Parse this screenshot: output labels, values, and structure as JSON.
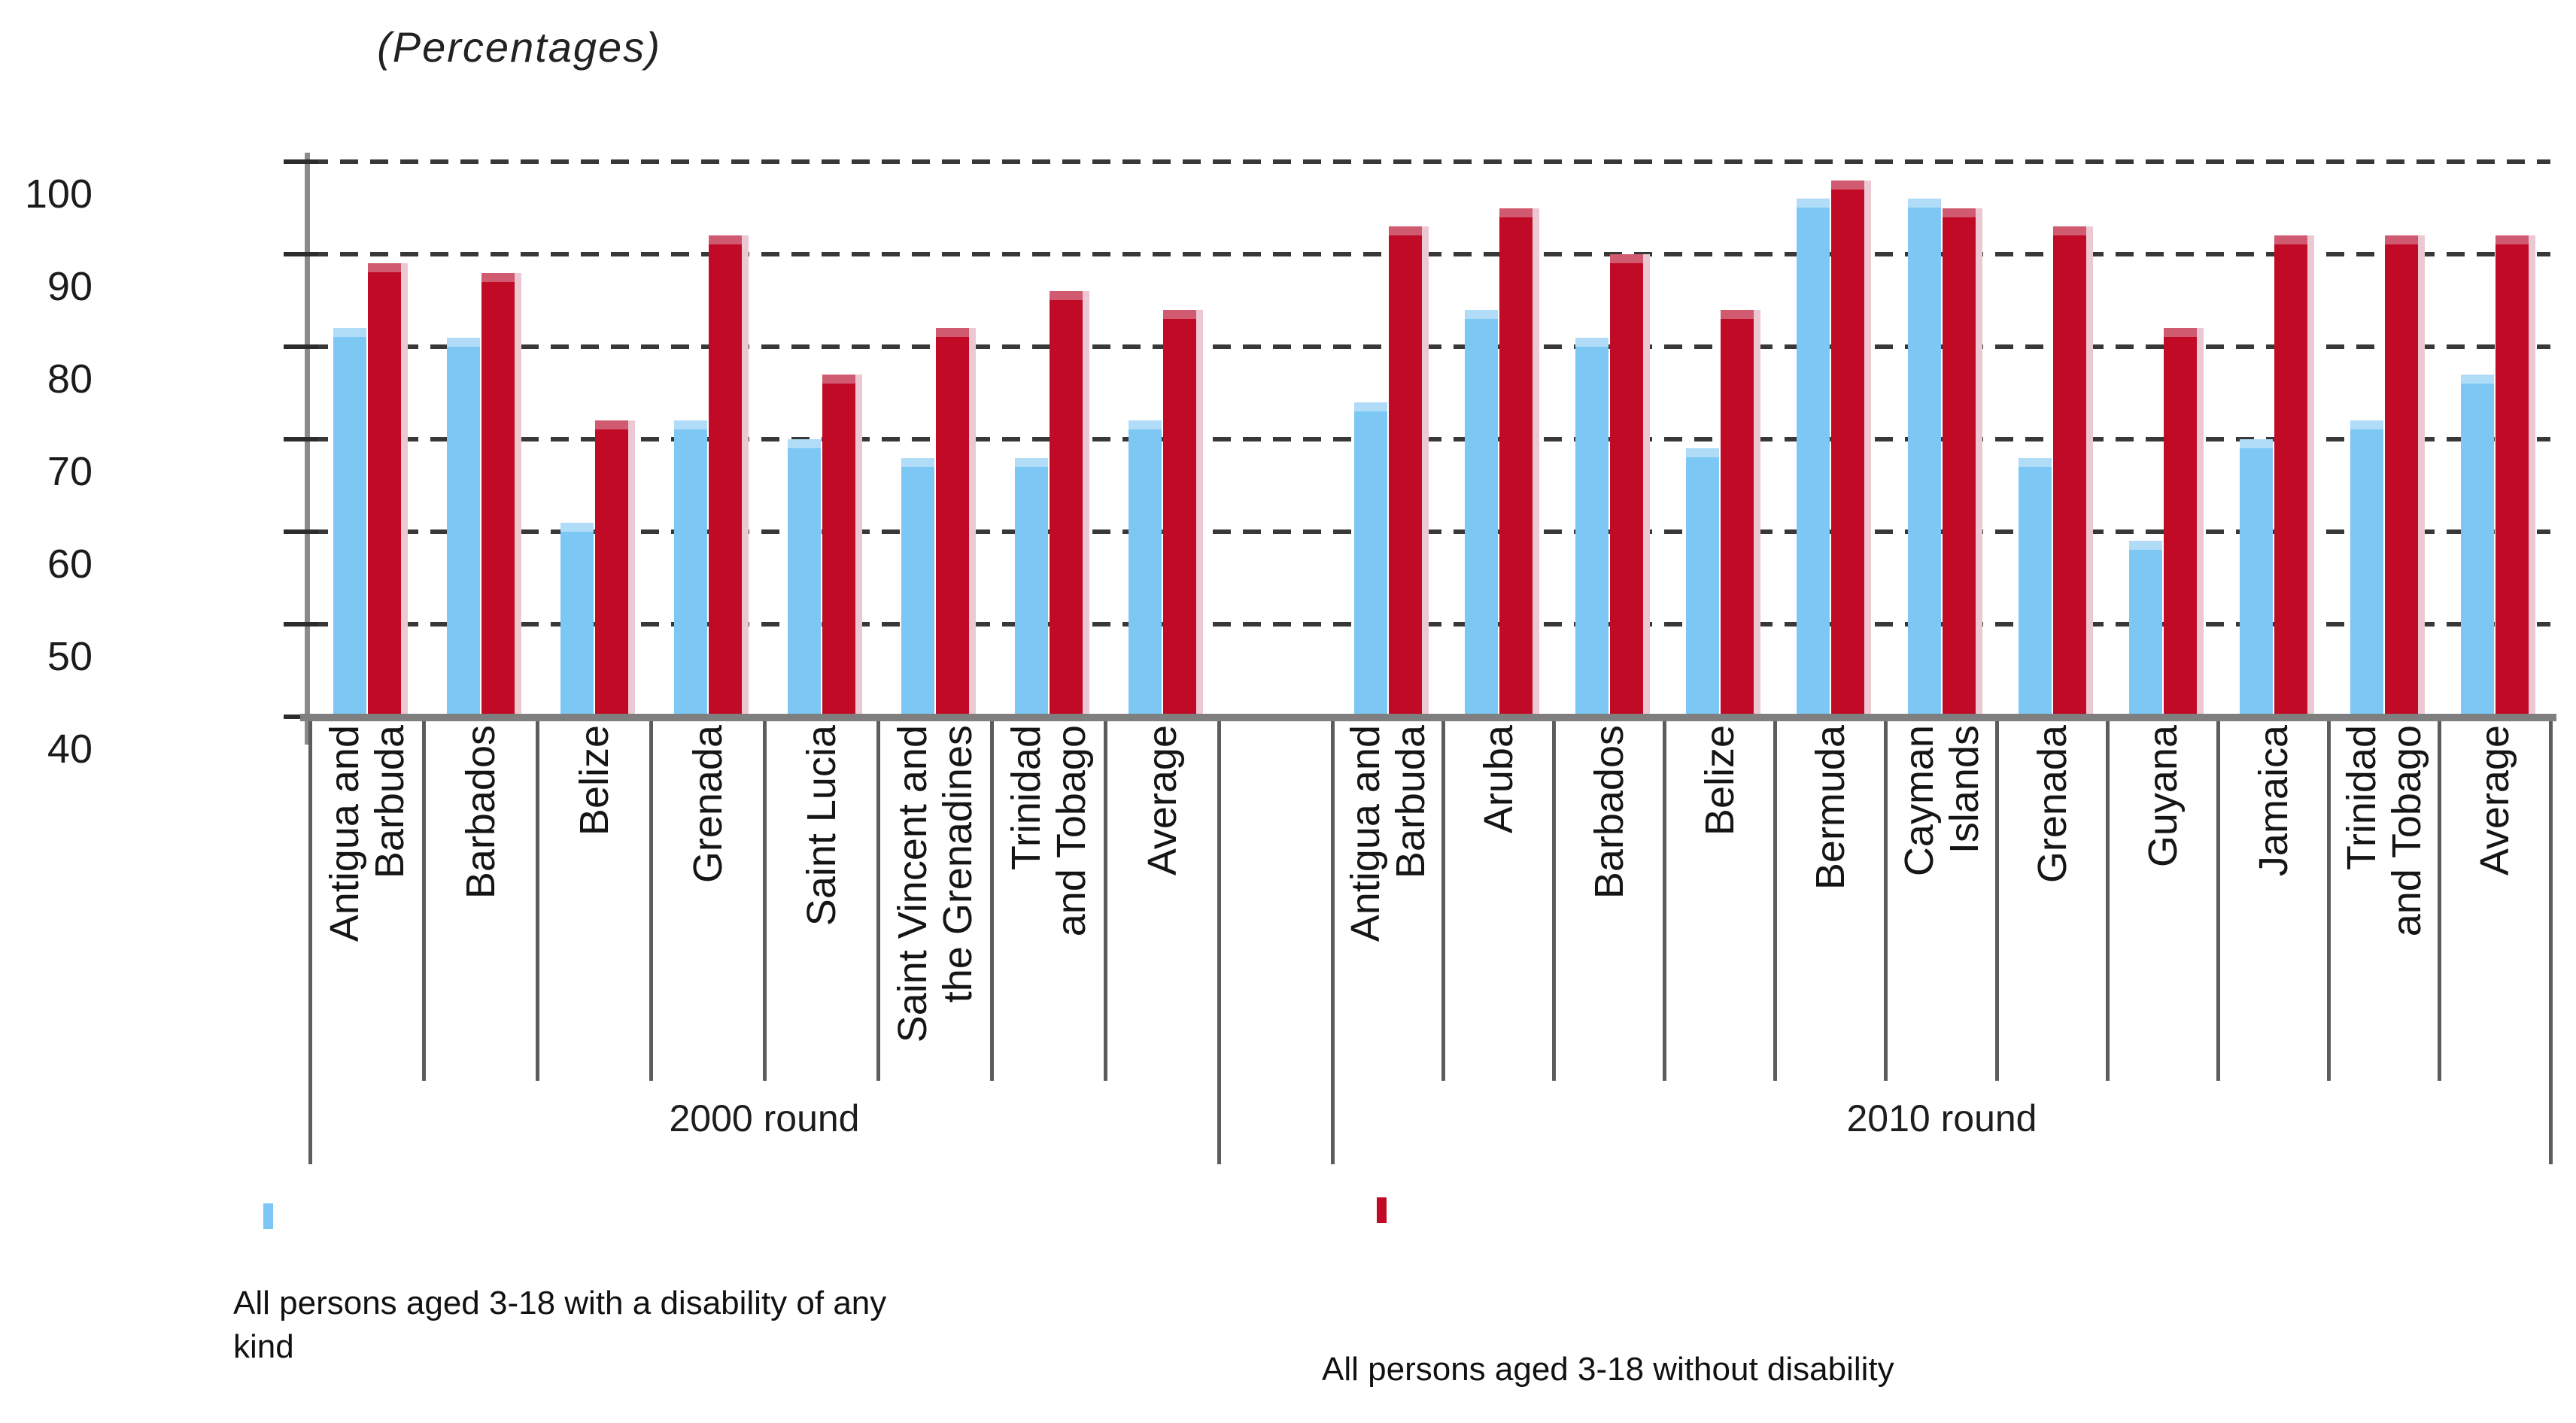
{
  "title": "(Percentages)",
  "legend": {
    "with_disability": {
      "label": "All persons aged 3-18 with a disability of any\nkind",
      "color": "#7CC7F4"
    },
    "without_disability": {
      "label": "All persons aged 3-18 without disability",
      "color": "#C00A26"
    }
  },
  "chart_data": {
    "type": "bar",
    "title": "(Percentages)",
    "xlabel": "",
    "ylabel": "",
    "ylim": [
      40,
      100
    ],
    "yticks": [
      40,
      50,
      60,
      70,
      80,
      90,
      100
    ],
    "grid": "horizontal-dashed",
    "legend_position": "bottom",
    "series_names": [
      "All persons aged 3-18 with a disability of any kind",
      "All persons aged 3-18 without disability"
    ],
    "series_colors": [
      "#7CC7F4",
      "#C00A26"
    ],
    "groups": [
      {
        "label": "2000 round",
        "categories": [
          "Antigua and\nBarbuda",
          "Barbados",
          "Belize",
          "Grenada",
          "Saint Lucia",
          "Saint Vincent and\nthe Grenadines",
          "Trinidad\nand Tobago",
          "Average"
        ],
        "series": [
          {
            "name": "All persons aged 3-18 with a disability of any kind",
            "values": [
              82,
              81,
              61,
              72,
              70,
              68,
              68,
              72
            ]
          },
          {
            "name": "All persons aged 3-18 without disability",
            "values": [
              89,
              88,
              72,
              92,
              77,
              82,
              86,
              84
            ]
          }
        ]
      },
      {
        "label": "2010 round",
        "categories": [
          "Antigua and\nBarbuda",
          "Aruba",
          "Barbados",
          "Belize",
          "Bermuda",
          "Cayman\nIslands",
          "Grenada",
          "Guyana",
          "Jamaica",
          "Trinidad\nand Tobago",
          "Average"
        ],
        "series": [
          {
            "name": "All persons aged 3-18 with a disability of any kind",
            "values": [
              74,
              84,
              81,
              69,
              96,
              96,
              68,
              59,
              70,
              72,
              77
            ]
          },
          {
            "name": "All persons aged 3-18 without disability",
            "values": [
              93,
              95,
              90,
              84,
              98,
              95,
              93,
              82,
              92,
              92,
              92
            ]
          }
        ]
      }
    ]
  }
}
